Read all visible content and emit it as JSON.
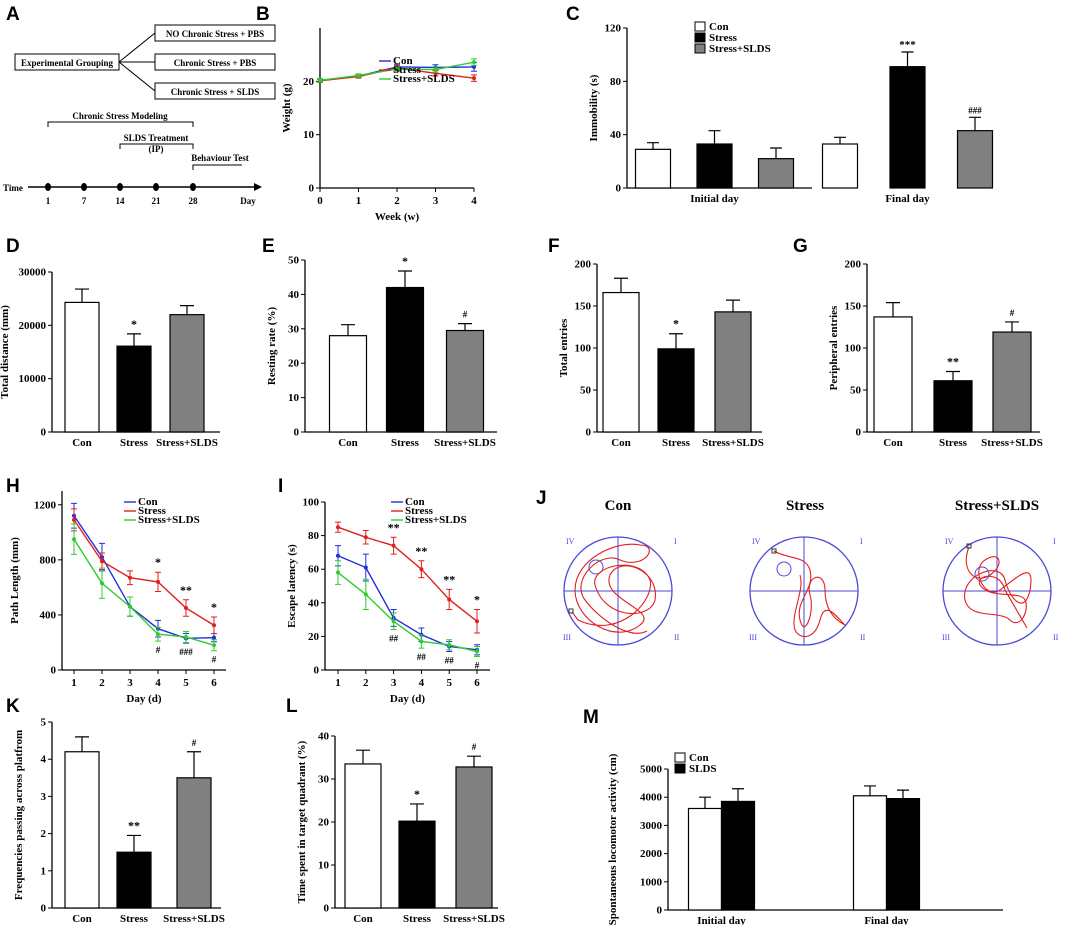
{
  "colors": {
    "con": "#ffffff",
    "stress": "#000000",
    "sl": "#808080",
    "line_con": "#1f2ee0",
    "line_stress": "#e01f1f",
    "line_sl": "#2ecc2e",
    "maze": "#4a4ad8",
    "path": "#e02020"
  },
  "panels": {
    "A": {
      "label": "A",
      "grouping": "Experimental Grouping",
      "groups": [
        "NO Chronic Stress + PBS",
        "Chronic Stress + PBS",
        "Chronic Stress + SLDS"
      ],
      "modeling": "Chronic Stress Modeling",
      "treatment": "SLDS Treatment",
      "route": "(IP)",
      "behaviour": "Behaviour Test",
      "time_label": "Time",
      "day_label": "Day",
      "days": [
        "1",
        "7",
        "14",
        "21",
        "28"
      ]
    },
    "J": {
      "label": "J",
      "titles": [
        "Con",
        "Stress",
        "Stress+SLDS"
      ],
      "quadrants": [
        "IV",
        "I",
        "III",
        "II"
      ]
    }
  },
  "chart_data": [
    {
      "id": "B",
      "type": "line",
      "label": "B",
      "ylabel": "Weight (g)",
      "xlabel": "Week (w)",
      "x": [
        0,
        1,
        2,
        3,
        4
      ],
      "xticks": [
        "0",
        "1",
        "2",
        "3",
        "4"
      ],
      "ylim": [
        0,
        30
      ],
      "yticks": [
        0,
        10,
        20
      ],
      "legend": [
        "Con",
        "Stress",
        "Stress+SLDS"
      ],
      "series": [
        {
          "name": "Con",
          "values": [
            20.2,
            21.0,
            22.7,
            22.6,
            22.7
          ],
          "err": [
            0.3,
            0.3,
            0.5,
            0.5,
            0.8
          ]
        },
        {
          "name": "Stress",
          "values": [
            20.1,
            20.9,
            22.5,
            21.5,
            20.6
          ],
          "err": [
            0.3,
            0.3,
            0.5,
            0.5,
            0.6
          ]
        },
        {
          "name": "Stress+SLDS",
          "values": [
            20.2,
            21.1,
            22.3,
            22.2,
            23.6
          ],
          "err": [
            0.3,
            0.3,
            0.5,
            0.5,
            0.6
          ]
        }
      ],
      "annotations": []
    },
    {
      "id": "C",
      "type": "bar",
      "label": "C",
      "ylabel": "Immobility (s)",
      "ylim": [
        0,
        120
      ],
      "yticks": [
        0,
        40,
        80,
        120
      ],
      "categories": [
        "Initial day",
        "Final day"
      ],
      "legend": [
        "Con",
        "Stress",
        "Stress+SLDS"
      ],
      "series": [
        {
          "name": "Con",
          "values": [
            29,
            33
          ],
          "err": [
            5,
            5
          ]
        },
        {
          "name": "Stress",
          "values": [
            33,
            91
          ],
          "err": [
            10,
            11
          ]
        },
        {
          "name": "Stress+SLDS",
          "values": [
            22,
            43
          ],
          "err": [
            8,
            10
          ]
        }
      ],
      "annotations": [
        {
          "group": 1,
          "series": 1,
          "text": "***"
        },
        {
          "group": 1,
          "series": 2,
          "text": "###"
        }
      ]
    },
    {
      "id": "D",
      "type": "bar",
      "label": "D",
      "ylabel": "Total distance (mm)",
      "ylim": [
        0,
        30000
      ],
      "yticks": [
        0,
        10000,
        20000,
        30000
      ],
      "categories": [
        "Con",
        "Stress",
        "Stress+SLDS"
      ],
      "values": [
        24300,
        16100,
        22000
      ],
      "err": [
        2500,
        2300,
        1700
      ],
      "annotations": [
        {
          "bar": 1,
          "text": "*"
        }
      ]
    },
    {
      "id": "E",
      "type": "bar",
      "label": "E",
      "ylabel": "Resting rate (%)",
      "ylim": [
        0,
        50
      ],
      "yticks": [
        0,
        10,
        20,
        30,
        40,
        50
      ],
      "categories": [
        "Con",
        "Stress",
        "Stress+SLDS"
      ],
      "values": [
        28,
        42,
        29.5
      ],
      "err": [
        3.2,
        4.8,
        2
      ],
      "annotations": [
        {
          "bar": 1,
          "text": "*"
        },
        {
          "bar": 2,
          "text": "#"
        }
      ]
    },
    {
      "id": "F",
      "type": "bar",
      "label": "F",
      "ylabel": "Total entries",
      "ylim": [
        0,
        200
      ],
      "yticks": [
        0,
        50,
        100,
        150,
        200
      ],
      "categories": [
        "Con",
        "Stress",
        "Stress+SLDS"
      ],
      "values": [
        166,
        99,
        143
      ],
      "err": [
        17,
        18,
        14
      ],
      "annotations": [
        {
          "bar": 1,
          "text": "*"
        }
      ]
    },
    {
      "id": "G",
      "type": "bar",
      "label": "G",
      "ylabel": "Peripheral entries",
      "ylim": [
        0,
        200
      ],
      "yticks": [
        0,
        50,
        100,
        150,
        200
      ],
      "categories": [
        "Con",
        "Stress",
        "Stress+SLDS"
      ],
      "values": [
        137,
        61,
        119
      ],
      "err": [
        17,
        11,
        12
      ],
      "annotations": [
        {
          "bar": 1,
          "text": "**"
        },
        {
          "bar": 2,
          "text": "#"
        }
      ]
    },
    {
      "id": "H",
      "type": "line",
      "label": "H",
      "ylabel": "Path Length (mm)",
      "xlabel": "Day (d)",
      "x": [
        1,
        2,
        3,
        4,
        5,
        6
      ],
      "xticks": [
        "1",
        "2",
        "3",
        "4",
        "5",
        "6"
      ],
      "ylim": [
        0,
        1300
      ],
      "yticks": [
        0,
        400,
        800,
        1200
      ],
      "legend": [
        "Con",
        "Stress",
        "Stress+SLDS"
      ],
      "series": [
        {
          "name": "Con",
          "values": [
            1120,
            820,
            460,
            300,
            230,
            235
          ],
          "err": [
            90,
            100,
            70,
            60,
            35,
            30
          ]
        },
        {
          "name": "Stress",
          "values": [
            1090,
            790,
            670,
            640,
            450,
            325
          ],
          "err": [
            80,
            60,
            50,
            70,
            60,
            60
          ]
        },
        {
          "name": "Stress+SLDS",
          "values": [
            950,
            630,
            460,
            260,
            240,
            180
          ],
          "err": [
            110,
            110,
            70,
            50,
            40,
            40
          ]
        }
      ],
      "annotations": [
        {
          "x": 4,
          "text": "*",
          "pos": "top"
        },
        {
          "x": 5,
          "text": "**",
          "pos": "top"
        },
        {
          "x": 6,
          "text": "*",
          "pos": "top"
        },
        {
          "x": 4,
          "text": "#",
          "pos": "bottom"
        },
        {
          "x": 5,
          "text": "###",
          "pos": "bottom"
        },
        {
          "x": 6,
          "text": "#",
          "pos": "bottom"
        }
      ]
    },
    {
      "id": "I",
      "type": "line",
      "label": "I",
      "ylabel": "Escape latency (s)",
      "xlabel": "Day (d)",
      "x": [
        1,
        2,
        3,
        4,
        5,
        6
      ],
      "xticks": [
        "1",
        "2",
        "3",
        "4",
        "5",
        "6"
      ],
      "ylim": [
        0,
        100
      ],
      "yticks": [
        0,
        20,
        40,
        60,
        80,
        100
      ],
      "legend": [
        "Con",
        "Stress",
        "Stress+SLDS"
      ],
      "series": [
        {
          "name": "Con",
          "values": [
            68,
            61,
            31,
            21,
            14,
            12
          ],
          "err": [
            6,
            8,
            5,
            4,
            3,
            3
          ]
        },
        {
          "name": "Stress",
          "values": [
            85,
            79,
            74,
            60,
            42,
            29
          ],
          "err": [
            3,
            4,
            5,
            5,
            6,
            7
          ]
        },
        {
          "name": "Stress+SLDS",
          "values": [
            58,
            45,
            29,
            17,
            15,
            11
          ],
          "err": [
            7,
            9,
            5,
            4,
            3,
            3
          ]
        }
      ],
      "annotations": [
        {
          "x": 3,
          "text": "**",
          "pos": "top"
        },
        {
          "x": 4,
          "text": "**",
          "pos": "top"
        },
        {
          "x": 5,
          "text": "**",
          "pos": "top"
        },
        {
          "x": 6,
          "text": "*",
          "pos": "top"
        },
        {
          "x": 3,
          "text": "##",
          "pos": "bottom"
        },
        {
          "x": 4,
          "text": "##",
          "pos": "bottom"
        },
        {
          "x": 5,
          "text": "##",
          "pos": "bottom"
        },
        {
          "x": 6,
          "text": "#",
          "pos": "bottom"
        }
      ]
    },
    {
      "id": "K",
      "type": "bar",
      "label": "K",
      "ylabel": "Frequencies passing  across platfrom",
      "ylim": [
        0,
        5
      ],
      "yticks": [
        0,
        1,
        2,
        3,
        4,
        5
      ],
      "categories": [
        "Con",
        "Stress",
        "Stress+SLDS"
      ],
      "values": [
        4.2,
        1.5,
        3.5
      ],
      "err": [
        0.4,
        0.45,
        0.7
      ],
      "annotations": [
        {
          "bar": 1,
          "text": "**"
        },
        {
          "bar": 2,
          "text": "#"
        }
      ]
    },
    {
      "id": "L",
      "type": "bar",
      "label": "L",
      "ylabel": "Time spent in target quadrant (%)",
      "ylim": [
        0,
        40
      ],
      "yticks": [
        0,
        10,
        20,
        30,
        40
      ],
      "categories": [
        "Con",
        "Stress",
        "Stress+SLDS"
      ],
      "values": [
        33.5,
        20.2,
        32.8
      ],
      "err": [
        3.2,
        4,
        2.5
      ],
      "annotations": [
        {
          "bar": 1,
          "text": "*"
        },
        {
          "bar": 2,
          "text": "#"
        }
      ]
    },
    {
      "id": "M",
      "type": "bar",
      "label": "M",
      "ylabel": "Spontaneous locomotor activity (cm)",
      "ylim": [
        0,
        5000
      ],
      "yticks": [
        0,
        1000,
        2000,
        3000,
        4000,
        5000
      ],
      "categories": [
        "Initial day",
        "Final day"
      ],
      "legend": [
        "Con",
        "SLDS"
      ],
      "series": [
        {
          "name": "Con",
          "values": [
            3600,
            4050
          ],
          "err": [
            400,
            350
          ]
        },
        {
          "name": "SLDS",
          "values": [
            3850,
            3950
          ],
          "err": [
            450,
            300
          ]
        }
      ],
      "annotations": []
    }
  ]
}
